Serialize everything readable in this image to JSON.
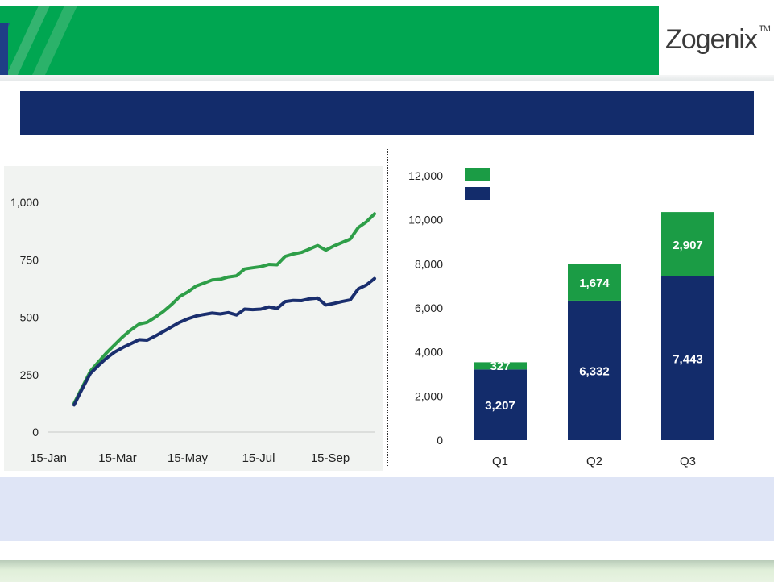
{
  "brand": {
    "logo_text": "Zogenix",
    "logo_tm": "TM",
    "green": "#00a651",
    "navy": "#132c6b"
  },
  "title_bar": {
    "text": ""
  },
  "bottom_box": {
    "text": ""
  },
  "chart_data": [
    {
      "type": "line",
      "title": "",
      "xlabel": "",
      "ylabel": "",
      "ylim": [
        0,
        1000
      ],
      "yticks": [
        "0",
        "250",
        "500",
        "750",
        "1,000"
      ],
      "xticks": [
        "15-Jan",
        "15-Mar",
        "15-May",
        "15-Jul",
        "15-Sep"
      ],
      "grid": false,
      "series": [
        {
          "color": "#2e9e48",
          "points": [
            [
              0,
              125
            ],
            [
              1,
              195
            ],
            [
              2,
              265
            ],
            [
              3,
              305
            ],
            [
              4,
              345
            ],
            [
              5,
              380
            ],
            [
              6,
              415
            ],
            [
              7,
              445
            ],
            [
              8,
              470
            ],
            [
              9,
              478
            ],
            [
              10,
              500
            ],
            [
              11,
              525
            ],
            [
              12,
              555
            ],
            [
              13,
              590
            ],
            [
              14,
              610
            ],
            [
              15,
              635
            ],
            [
              16,
              648
            ],
            [
              17,
              662
            ],
            [
              18,
              665
            ],
            [
              19,
              675
            ],
            [
              20,
              680
            ],
            [
              21,
              710
            ],
            [
              22,
              715
            ],
            [
              23,
              720
            ],
            [
              24,
              730
            ],
            [
              25,
              728
            ],
            [
              26,
              765
            ],
            [
              27,
              775
            ],
            [
              28,
              782
            ],
            [
              29,
              797
            ],
            [
              30,
              812
            ],
            [
              31,
              792
            ],
            [
              32,
              810
            ],
            [
              33,
              825
            ],
            [
              34,
              840
            ],
            [
              35,
              890
            ],
            [
              36,
              915
            ],
            [
              37,
              950
            ]
          ]
        },
        {
          "color": "#1a2e6e",
          "points": [
            [
              0,
              118
            ],
            [
              1,
              188
            ],
            [
              2,
              255
            ],
            [
              3,
              290
            ],
            [
              4,
              322
            ],
            [
              5,
              348
            ],
            [
              6,
              368
            ],
            [
              7,
              385
            ],
            [
              8,
              402
            ],
            [
              9,
              400
            ],
            [
              10,
              418
            ],
            [
              11,
              438
            ],
            [
              12,
              458
            ],
            [
              13,
              478
            ],
            [
              14,
              493
            ],
            [
              15,
              505
            ],
            [
              16,
              512
            ],
            [
              17,
              518
            ],
            [
              18,
              514
            ],
            [
              19,
              520
            ],
            [
              20,
              510
            ],
            [
              21,
              535
            ],
            [
              22,
              533
            ],
            [
              23,
              535
            ],
            [
              24,
              545
            ],
            [
              25,
              538
            ],
            [
              26,
              568
            ],
            [
              27,
              573
            ],
            [
              28,
              572
            ],
            [
              29,
              580
            ],
            [
              30,
              583
            ],
            [
              31,
              553
            ],
            [
              32,
              560
            ],
            [
              33,
              568
            ],
            [
              34,
              575
            ],
            [
              35,
              623
            ],
            [
              36,
              640
            ],
            [
              37,
              668
            ]
          ]
        }
      ]
    },
    {
      "type": "bar",
      "stacked": true,
      "title": "",
      "categories": [
        "Q1",
        "Q2",
        "Q3"
      ],
      "ylim": [
        0,
        12000
      ],
      "yticks": [
        "0",
        "2,000",
        "4,000",
        "6,000",
        "8,000",
        "10,000",
        "12,000"
      ],
      "legend_position": "top-left",
      "series": [
        {
          "color": "#132c6b",
          "values": [
            3207,
            6332,
            7443
          ],
          "labels": [
            "3,207",
            "6,332",
            "7,443"
          ]
        },
        {
          "color": "#1b9c45",
          "values": [
            327,
            1674,
            2907
          ],
          "labels": [
            "327",
            "1,674",
            "2,907"
          ]
        }
      ]
    }
  ]
}
